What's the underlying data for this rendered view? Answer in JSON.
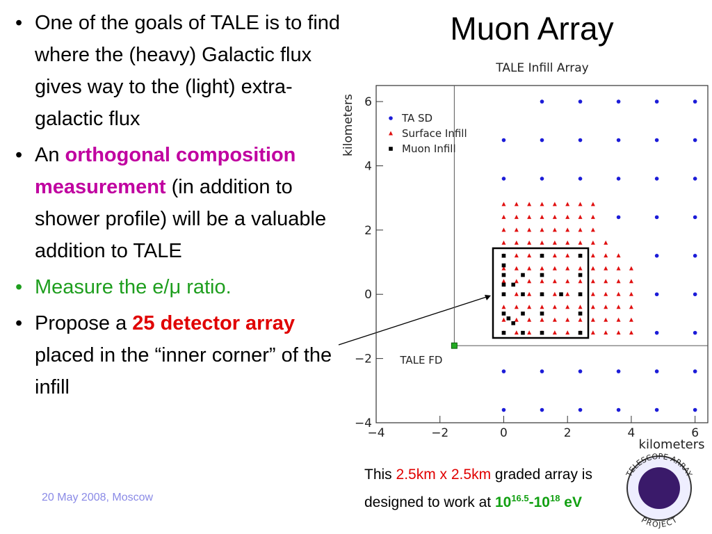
{
  "slide": {
    "title": "Muon Array",
    "bullets": [
      [
        "One of the goals of TALE is to find where the (heavy) Galactic flux gives way to the (light) extra-galactic flux"
      ],
      [
        "An ",
        "orthogonal composition measurement",
        " (in addition to shower profile) will be a valuable addition to TALE"
      ],
      [
        "Measure the e/μ ratio."
      ],
      [
        "Propose a ",
        "25 detector array",
        " placed in the “inner corner” of the infill"
      ]
    ],
    "footer": "20 May 2008, Moscow",
    "caption": [
      "This ",
      "2.5km x 2.5km",
      " graded array is ",
      "designed to work at ",
      "10",
      "16.5",
      "-10",
      "18",
      " eV"
    ],
    "logo": [
      "TELESCOPE ARRAY",
      "PROJECT"
    ]
  },
  "chart_data": {
    "type": "scatter",
    "title": "TALE Infill Array",
    "x_label": "kilometers",
    "y_label": "kilometers",
    "xlim": [
      -4,
      6.4
    ],
    "ylim": [
      -4,
      6.5
    ],
    "xticks": [
      {
        "value": -4,
        "label": "−4"
      },
      {
        "value": -2,
        "label": "−2"
      },
      0,
      2,
      4,
      6
    ],
    "yticks": [
      {
        "value": -4,
        "label": "−4"
      },
      {
        "value": -2,
        "label": "−2"
      },
      0,
      2,
      4,
      6
    ],
    "legend": "upper left",
    "series": [
      {
        "name": "TA SD",
        "color": "#1c1cd8",
        "marker": "circle",
        "x": [
          1.2,
          2.4,
          3.6,
          4.8,
          6,
          0,
          1.2,
          2.4,
          3.6,
          4.8,
          6,
          0,
          1.2,
          2.4,
          3.6,
          4.8,
          6,
          3.6,
          4.8,
          6,
          4.8,
          6,
          4.8,
          6,
          4.8,
          6,
          0,
          1.2,
          2.4,
          3.6,
          4.8,
          6,
          0,
          1.2,
          2.4,
          3.6,
          4.8,
          6
        ],
        "values": [
          6,
          6,
          6,
          6,
          6,
          4.8,
          4.8,
          4.8,
          4.8,
          4.8,
          4.8,
          3.6,
          3.6,
          3.6,
          3.6,
          3.6,
          3.6,
          2.4,
          2.4,
          2.4,
          1.2,
          1.2,
          0,
          0,
          -1.2,
          -1.2,
          -2.4,
          -2.4,
          -2.4,
          -2.4,
          -2.4,
          -2.4,
          -3.6,
          -3.6,
          -3.6,
          -3.6,
          -3.6,
          -3.6
        ]
      },
      {
        "name": "Surface Infill",
        "color": "#e01010",
        "marker": "triangle",
        "x": [
          0,
          0.4,
          0.8,
          1.2,
          1.6,
          2,
          2.4,
          2.8,
          0,
          0.4,
          0.8,
          1.2,
          1.6,
          2,
          2.4,
          2.8,
          0,
          0.4,
          0.8,
          1.2,
          1.6,
          2,
          2.4,
          2.8,
          0,
          0.4,
          0.8,
          1.2,
          1.6,
          2,
          2.4,
          2.8,
          3.2,
          0,
          0.4,
          0.8,
          1.2,
          1.6,
          2,
          2.4,
          2.8,
          3.2,
          3.6,
          0,
          0.4,
          0.8,
          1.2,
          1.6,
          2,
          2.4,
          2.8,
          3.2,
          3.6,
          4,
          0,
          0.4,
          0.8,
          1.2,
          1.6,
          2,
          2.4,
          2.8,
          3.2,
          3.6,
          4,
          0,
          0.4,
          0.8,
          1.2,
          1.6,
          2,
          2.4,
          2.8,
          3.2,
          3.6,
          4,
          0,
          0.4,
          0.8,
          1.2,
          1.6,
          2,
          2.4,
          2.8,
          3.2,
          3.6,
          4,
          0,
          0.4,
          0.8,
          1.2,
          1.6,
          2,
          2.4,
          2.8,
          3.2,
          3.6,
          4,
          0,
          0.4,
          0.8,
          1.2,
          1.6,
          2,
          2.4,
          2.8,
          3.2,
          3.6,
          4
        ],
        "values": [
          2.8,
          2.8,
          2.8,
          2.8,
          2.8,
          2.8,
          2.8,
          2.8,
          2.4,
          2.4,
          2.4,
          2.4,
          2.4,
          2.4,
          2.4,
          2.4,
          2,
          2,
          2,
          2,
          2,
          2,
          2,
          2,
          1.6,
          1.6,
          1.6,
          1.6,
          1.6,
          1.6,
          1.6,
          1.6,
          1.6,
          1.2,
          1.2,
          1.2,
          1.2,
          1.2,
          1.2,
          1.2,
          1.2,
          1.2,
          1.2,
          0.8,
          0.8,
          0.8,
          0.8,
          0.8,
          0.8,
          0.8,
          0.8,
          0.8,
          0.8,
          0.8,
          0.4,
          0.4,
          0.4,
          0.4,
          0.4,
          0.4,
          0.4,
          0.4,
          0.4,
          0.4,
          0.4,
          0,
          0,
          0,
          0,
          0,
          0,
          0,
          0,
          0,
          0,
          0,
          -0.4,
          -0.4,
          -0.4,
          -0.4,
          -0.4,
          -0.4,
          -0.4,
          -0.4,
          -0.4,
          -0.4,
          -0.4,
          -0.8,
          -0.8,
          -0.8,
          -0.8,
          -0.8,
          -0.8,
          -0.8,
          -0.8,
          -0.8,
          -0.8,
          -0.8,
          -1.2,
          -1.2,
          -1.2,
          -1.2,
          -1.2,
          -1.2,
          -1.2,
          -1.2,
          -1.2,
          -1.2,
          -1.2
        ]
      },
      {
        "name": "Muon Infill",
        "color": "#000000",
        "marker": "square",
        "x": [
          0,
          1.2,
          2.4,
          0,
          0,
          0.6,
          1.2,
          2.4,
          0,
          0.3,
          0,
          0.6,
          1.2,
          1.8,
          2.4,
          0,
          0.6,
          1.2,
          2.4,
          0.15,
          0.3,
          0,
          0.6,
          1.2,
          2.4
        ],
        "values": [
          1.2,
          1.2,
          1.2,
          0.9,
          0.6,
          0.6,
          0.6,
          0.6,
          0.3,
          0.3,
          0,
          0,
          0,
          0,
          0,
          -0.6,
          -0.6,
          -0.6,
          -0.6,
          -0.75,
          -0.9,
          -1.2,
          -1.2,
          -1.2,
          -1.2
        ]
      }
    ],
    "fd": {
      "label": "TALE FD",
      "color": "#22aa22",
      "x": -1.55,
      "y": -1.6
    }
  }
}
